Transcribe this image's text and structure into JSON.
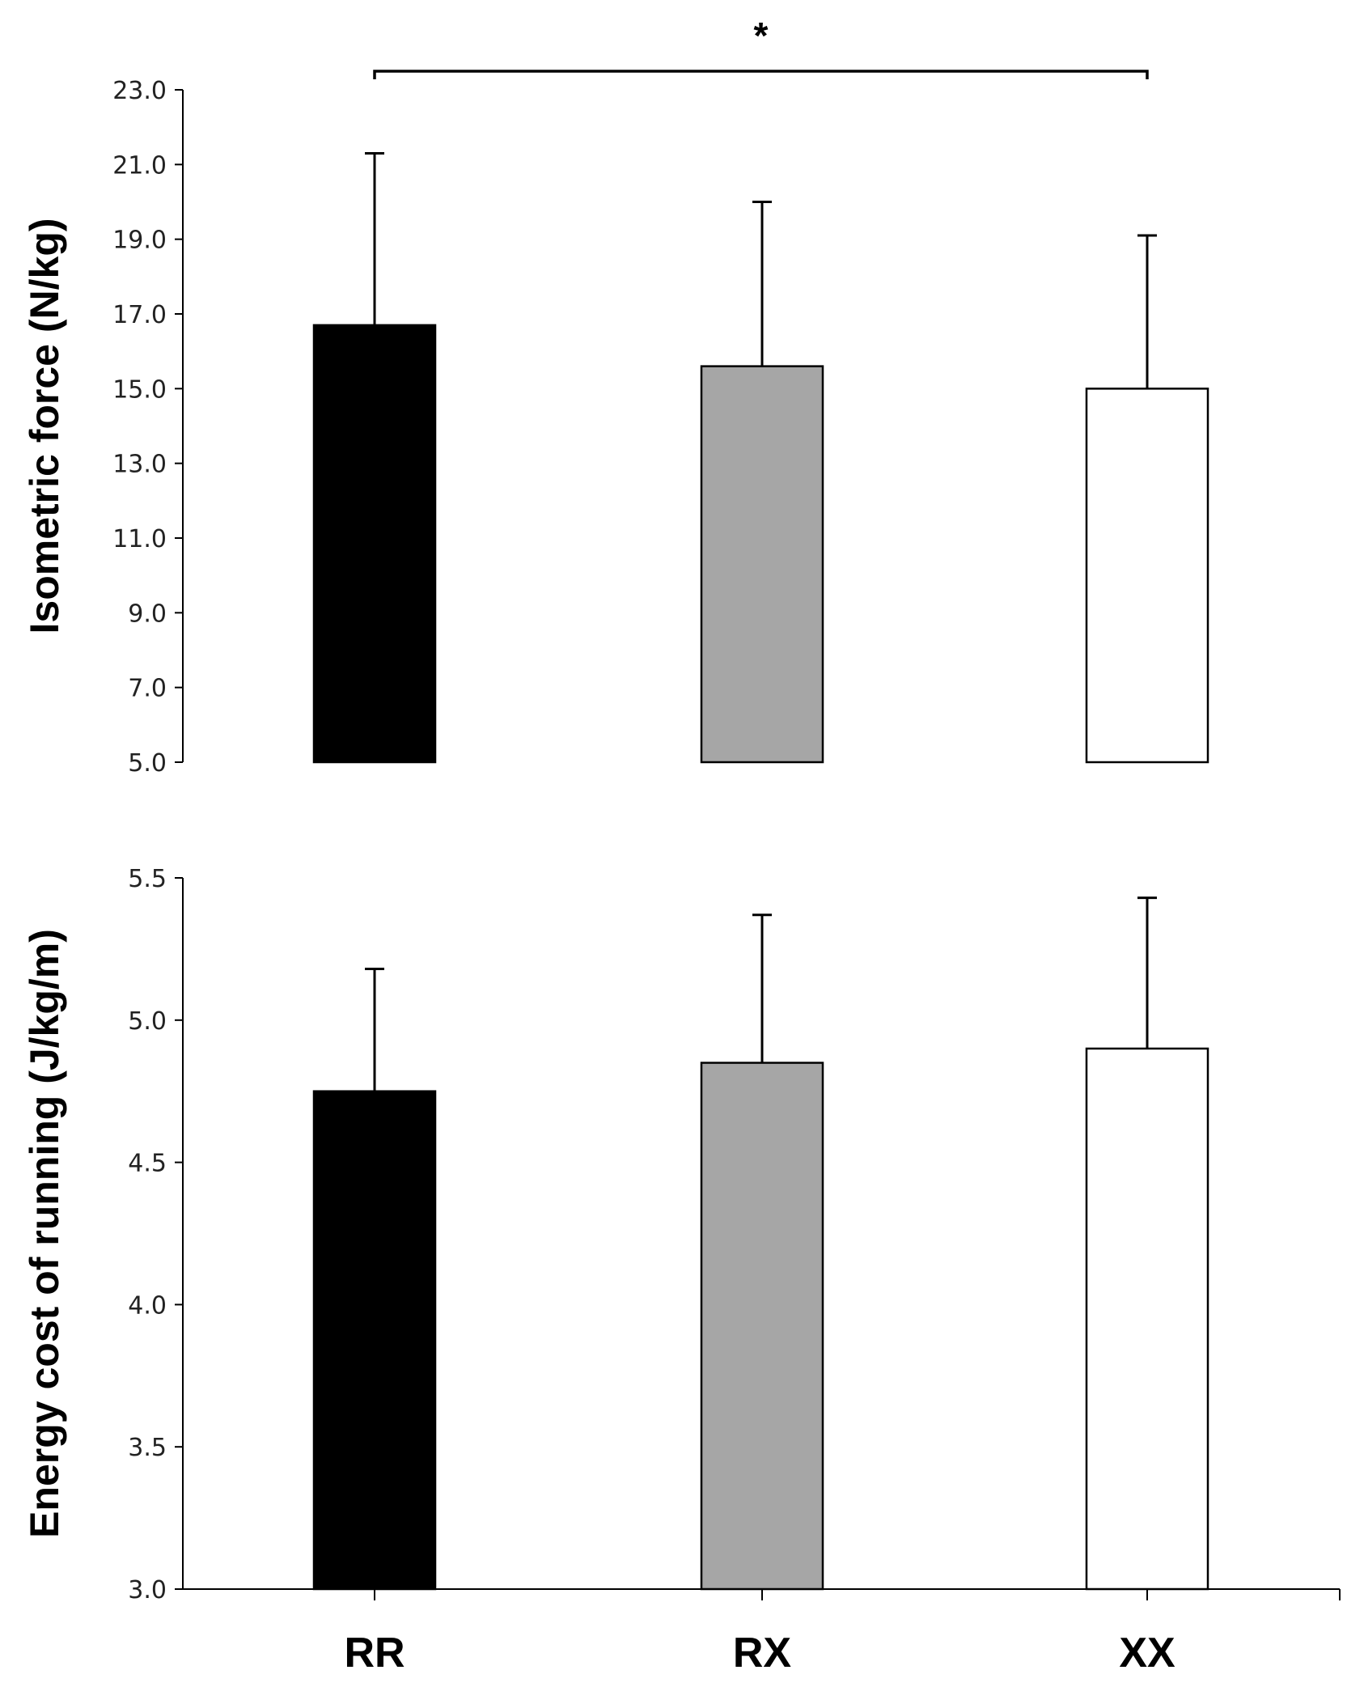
{
  "chart_data": [
    {
      "type": "bar",
      "title": "",
      "xlabel": "",
      "ylabel": "Isometric force (N/kg)",
      "ylim": [
        5.0,
        23.0
      ],
      "yticks": [
        "5.0",
        "7.0",
        "9.0",
        "11.0",
        "13.0",
        "15.0",
        "17.0",
        "19.0",
        "21.0",
        "23.0"
      ],
      "categories": [
        "RR",
        "RX",
        "XX"
      ],
      "values": [
        16.7,
        15.6,
        15.0
      ],
      "error_upper": [
        21.3,
        20.0,
        19.1
      ],
      "colors": [
        "#000000",
        "#a6a6a6",
        "#ffffff"
      ],
      "significance": {
        "from": "RR",
        "to": "XX",
        "label": "*"
      }
    },
    {
      "type": "bar",
      "title": "",
      "xlabel": "",
      "ylabel": "Energy cost of running (J/kg/m)",
      "ylim": [
        3.0,
        5.5
      ],
      "yticks": [
        "3.0",
        "3.5",
        "4.0",
        "4.5",
        "5.0",
        "5.5"
      ],
      "categories": [
        "RR",
        "RX",
        "XX"
      ],
      "values": [
        4.75,
        4.85,
        4.9
      ],
      "error_upper": [
        5.18,
        5.37,
        5.43
      ],
      "colors": [
        "#000000",
        "#a6a6a6",
        "#ffffff"
      ]
    }
  ]
}
